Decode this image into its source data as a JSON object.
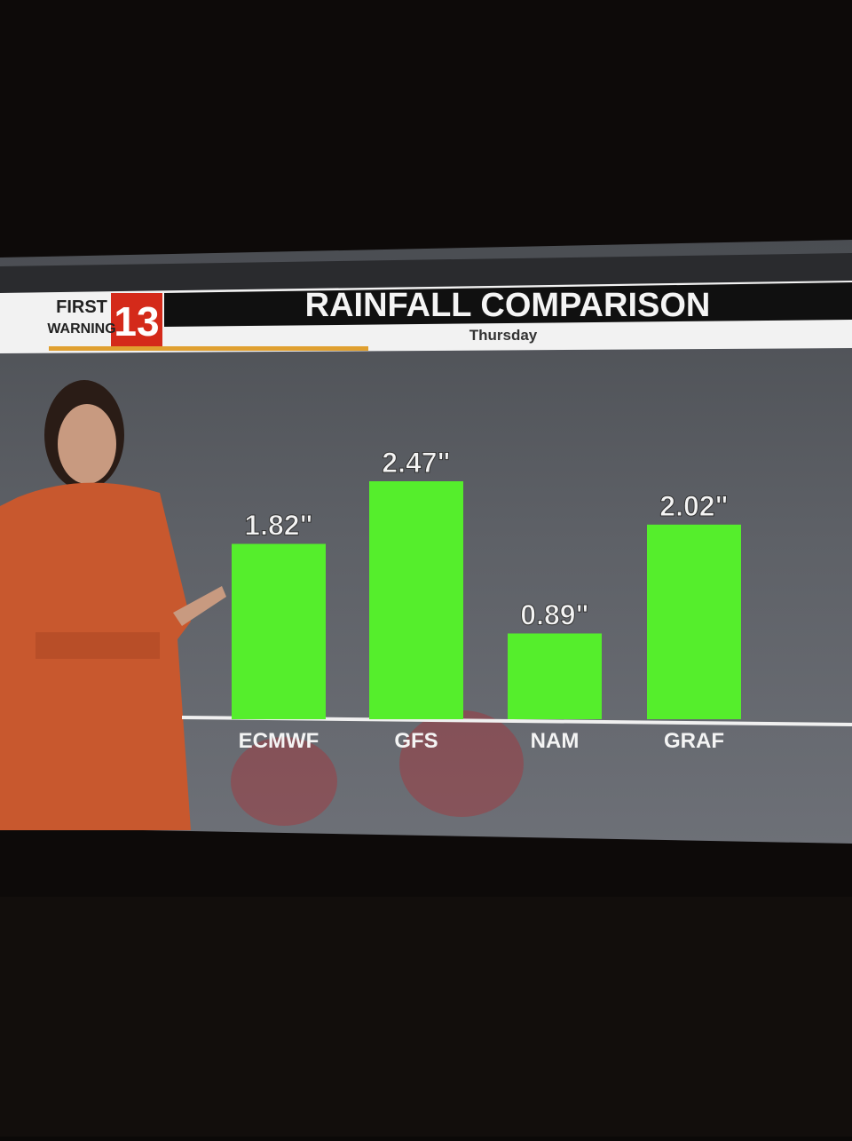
{
  "brand": {
    "line1": "FIRST",
    "line2": "WARNING",
    "number": "13"
  },
  "chart_data": {
    "type": "bar",
    "title": "RAINFALL COMPARISON",
    "subtitle": "Thursday",
    "categories": [
      "ECMWF",
      "GFS",
      "NAM",
      "GRAF"
    ],
    "values": [
      1.82,
      2.47,
      0.89,
      2.02
    ],
    "value_labels": [
      "1.82\"",
      "2.47\"",
      "0.89\"",
      "2.02\""
    ],
    "color": "#55ee2c"
  }
}
